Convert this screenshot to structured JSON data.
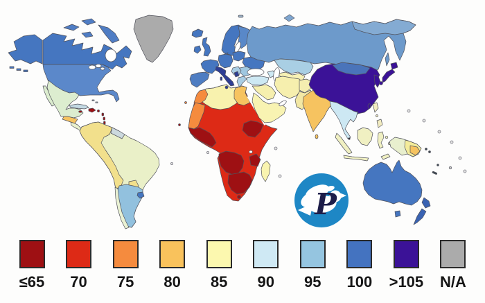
{
  "legend": {
    "items": [
      {
        "key": "le65",
        "label": "≤65",
        "color": "#9e1013"
      },
      {
        "key": "70",
        "label": "70",
        "color": "#dd2a16"
      },
      {
        "key": "75",
        "label": "75",
        "color": "#f58b3e"
      },
      {
        "key": "80",
        "label": "80",
        "color": "#f9c25c"
      },
      {
        "key": "85",
        "label": "85",
        "color": "#fcf8af"
      },
      {
        "key": "90",
        "label": "90",
        "color": "#cfe9f4"
      },
      {
        "key": "95",
        "label": "95",
        "color": "#95c5e0"
      },
      {
        "key": "100",
        "label": "100",
        "color": "#4473c0"
      },
      {
        "key": "gt105",
        "label": ">105",
        "color": "#3b1297"
      },
      {
        "key": "na",
        "label": "N/A",
        "color": "#ababab"
      }
    ]
  },
  "logo": {
    "letter": "P",
    "circle_color": "#1e87c5",
    "bird_color": "#ffffff",
    "letter_color": "#1d1d49"
  },
  "map": {
    "ocean_color": "#ffffff",
    "border_color": "#51525b",
    "region_fills": {
      "canada": "#4576c0",
      "alaska": "#4576c0",
      "arctic-islands": "#4f7dc4",
      "usa": "#5b88ca",
      "greenland": "#ababab",
      "mexico": "#dcedcf",
      "central-america-north": "#f6c360",
      "central-america-south": "#e9f0cc",
      "cuba": "#c3d9e3",
      "jamaica": "#9e1013",
      "hispaniola": "#9e1013",
      "antilles": "#9e1013",
      "bahamas": "#b9c6cc",
      "andes": "#f2e08c",
      "guyanas": "#ccd9de",
      "brazil": "#eaf0c8",
      "paraguay": "#f2e08c",
      "argentina": "#92c1de",
      "chile": "#e9f1d3",
      "uruguay": "#4576c0",
      "iceland": "#4576c0",
      "uk": "#4576c0",
      "ireland": "#4576c0",
      "france": "#4576c0",
      "iberia": "#4e7dc2",
      "germany-central": "#4576c0",
      "scandinavia": "#4576c0",
      "finland": "#5988c8",
      "poland-baltics": "#4576c0",
      "ukraine-belarus": "#4576c0",
      "romania-bulgaria": "#9fc7e0",
      "balkans": "#a9cde4",
      "balkans-dark": "#2e3e94",
      "greece": "#a9cde4",
      "italy": "#2e3e94",
      "russia": "#6d9acb",
      "russia-ne": "#84abd3",
      "novaya-zemlya": "#7fa6cf",
      "svalbard": "#9fb6c9",
      "kazakhstan": "#a9cfe4",
      "central-asia": "#f7f1b4",
      "caucasus": "#cde8f3",
      "turkey": "#cde8f3",
      "levant-iraq": "#f6efae",
      "arabia": "#f8f3b2",
      "iran": "#f6efae",
      "afghanistan": "#f4edb0",
      "pakistan": "#f3e8a4",
      "india": "#f6c360",
      "sri-lanka": "#f6c360",
      "china": "#3b1297",
      "mongolia": "#4a74ba",
      "korea": "#3b1297",
      "japan": "#3b1297",
      "taiwan": "#3b1297",
      "hainan": "#4a74ba",
      "sakhalin": "#6d9acb",
      "se-asia": "#cde8f3",
      "singapore": "#26262e",
      "sumatra": "#f0f0c2",
      "java": "#f0f0c2",
      "borneo": "#f0f0c2",
      "sulawesi": "#f0f0c2",
      "philippines": "#f2ecc0",
      "moluccas": "#f0f0c2",
      "timor": "#f0f0c2",
      "new-guinea-west": "#e8efce",
      "new-guinea-east": "#f4ec9a",
      "png-amber": "#f6c360",
      "australia": "#4576c0",
      "tasmania": "#4576c0",
      "new-zealand": "#3a63b2",
      "pacific-dark": "#3f4a52",
      "pacific-gray": "#c9c9c9",
      "africa-base": "#dd2a16",
      "north-africa-yellow": "#f8f2ae",
      "morocco": "#f58b3e",
      "west-sahara-mauritania": "#f58b3e",
      "egypt": "#f6c360",
      "west-africa-dark": "#9e1013",
      "drc": "#9e1013",
      "ethiopia": "#9e1013",
      "tanzania": "#9e1013",
      "southern-africa-dark": "#9e1013",
      "lesotho": "#9e1013",
      "madagascar": "#f9f4b0",
      "cape-verde": "#9e1013",
      "canary": "#f58b3e"
    },
    "region_values": {
      "canada": "100",
      "usa": "95-100",
      "greenland": "N/A",
      "mexico": "85-90",
      "central-america": "80-85",
      "hispaniola-antilles": "≤65",
      "andes-countries": "85",
      "brazil": "85",
      "argentina": "95",
      "chile": "85-90",
      "uruguay": "100",
      "western-europe": "100",
      "italy": "100-105",
      "balkans": "90-95",
      "russia": "95-100",
      "kazakhstan": "95",
      "turkey": "90",
      "middle-east": "85",
      "egypt": "80",
      "north-africa": "85",
      "morocco-mauritania": "75",
      "sahel": "70",
      "sub-saharan-africa": "≤65",
      "south-africa": "70",
      "madagascar": "85",
      "india": "80",
      "pakistan-iran-afghanistan": "85",
      "china-korea-japan-taiwan": ">105",
      "mongolia": "100",
      "southeast-asia": "90",
      "indonesia-philippines": "85",
      "new-guinea": "80-85",
      "australia": "100",
      "new-zealand": "100"
    }
  }
}
